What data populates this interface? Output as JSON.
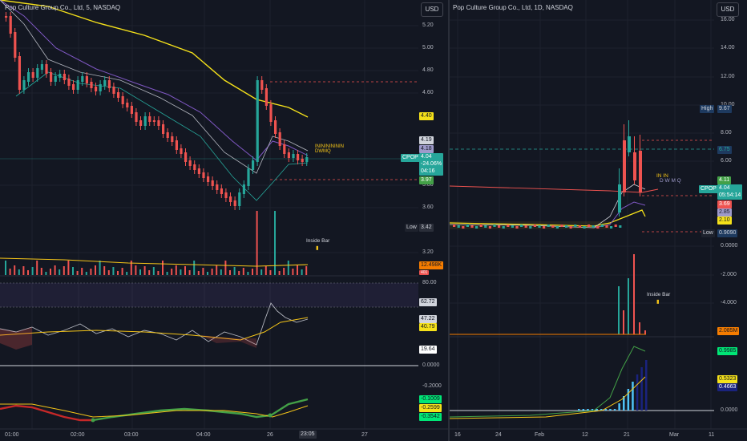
{
  "left": {
    "title": "Pop Culture Group Co., Ltd, 5, NASDAQ",
    "currency": "USD",
    "price_axis": [
      "5.20",
      "5.00",
      "4.80",
      "4.60",
      "4.40",
      "4.19",
      "4.18",
      "3.97",
      "3.80",
      "3.60",
      "3.42",
      "3.20"
    ],
    "price_ticks": [
      "5.20",
      "5.00",
      "4.80",
      "4.60",
      "3.80",
      "3.60",
      "3.20"
    ],
    "time_axis": [
      "01:00",
      "02:00",
      "03:00",
      "04:00",
      "26",
      "23:05",
      "27"
    ],
    "tags": {
      "p440": "4.40",
      "p419": "4.19",
      "p418": "4.18",
      "ticker": "CPOP",
      "price": "4.04",
      "change": "-24.06%",
      "countdown": "04:16",
      "p397": "3.97",
      "low_label": "Low",
      "low_value": "3.42",
      "volume": "12.498K",
      "vol2": "401"
    },
    "signal_text": "ININININININ",
    "signal_sub": "DWMQ",
    "inside_bar": "Inside Bar",
    "rsi": {
      "upper": "80.00",
      "v1": "62.72",
      "v2": "47.22",
      "v3": "40.79",
      "v4": "19.64",
      "zero": "0.0000"
    },
    "macd": {
      "neg": "-0.2000",
      "v1": "-0.1009",
      "v2": "-0.2599",
      "v3": "-0.3542"
    }
  },
  "right": {
    "title": "Pop Culture Group Co., Ltd, 1D, NASDAQ",
    "currency": "USD",
    "price_axis": [
      "16.00",
      "14.00",
      "12.00",
      "10.00",
      "8.00",
      "6.00",
      "0.0000",
      "-2.000",
      "-4.000"
    ],
    "time_axis": [
      "16",
      "24",
      "Feb",
      "12",
      "21",
      "Mar",
      "11"
    ],
    "tags": {
      "high_label": "High",
      "high_value": "9.67",
      "p675": "6.75",
      "p411": "4.11",
      "ticker": "CPOP",
      "price": "4.04",
      "countdown": "05:54:14",
      "p369": "3.69",
      "p285": "2.85",
      "p210": "2.10",
      "low_label": "Low",
      "low_value": "0.9090",
      "volume": "2.085M",
      "o1": "0.9985",
      "o2": "0.5323",
      "o3": "0.4663",
      "zero": "0.0000"
    },
    "signal_text": "IN IN",
    "signal_sub": "D W M Q",
    "inside_bar": "Inside Bar"
  },
  "colors": {
    "up": "#26a69a",
    "down": "#ef5350",
    "bg": "#131722",
    "grid": "#1e222d",
    "gold": "#f5c518"
  }
}
